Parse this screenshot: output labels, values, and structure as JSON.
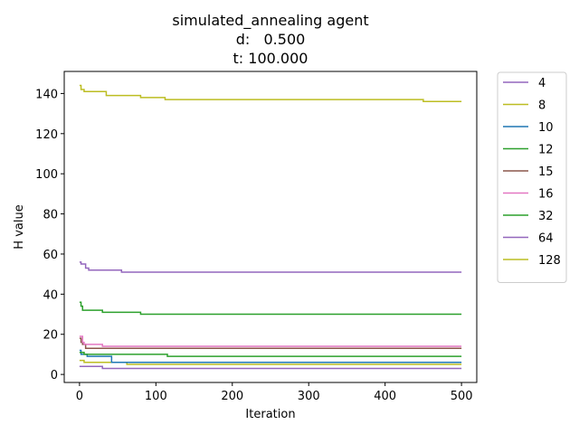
{
  "chart_data": {
    "type": "line",
    "title_lines": [
      "simulated_annealing agent",
      "d:   0.500",
      "t: 100.000"
    ],
    "xlabel": "Iteration",
    "ylabel": "H value",
    "xlim": [
      -20,
      520
    ],
    "ylim": [
      -4,
      151
    ],
    "xticks": [
      0,
      100,
      200,
      300,
      400,
      500
    ],
    "yticks": [
      0,
      20,
      40,
      60,
      80,
      100,
      120,
      140
    ],
    "grid": false,
    "legend_position": "outside-right",
    "series": [
      {
        "name": "4",
        "color": "#9467bd",
        "steps": [
          [
            0,
            4
          ],
          [
            30,
            3
          ],
          [
            500,
            3
          ]
        ]
      },
      {
        "name": "8",
        "color": "#bcbd22",
        "steps": [
          [
            0,
            7
          ],
          [
            6,
            6
          ],
          [
            62,
            5
          ],
          [
            500,
            5
          ]
        ]
      },
      {
        "name": "10",
        "color": "#1f77b4",
        "steps": [
          [
            0,
            12
          ],
          [
            2,
            10
          ],
          [
            10,
            9
          ],
          [
            42,
            6
          ],
          [
            500,
            6
          ]
        ]
      },
      {
        "name": "12",
        "color": "#2ca02c",
        "steps": [
          [
            0,
            11
          ],
          [
            6,
            10
          ],
          [
            115,
            9
          ],
          [
            500,
            9
          ]
        ]
      },
      {
        "name": "15",
        "color": "#8c564b",
        "steps": [
          [
            0,
            18
          ],
          [
            2,
            16
          ],
          [
            4,
            15
          ],
          [
            8,
            13
          ],
          [
            500,
            13
          ]
        ]
      },
      {
        "name": "16",
        "color": "#e377c2",
        "steps": [
          [
            0,
            19
          ],
          [
            4,
            16
          ],
          [
            6,
            15
          ],
          [
            30,
            14
          ],
          [
            500,
            14
          ]
        ]
      },
      {
        "name": "32",
        "color": "#2ca02c",
        "steps": [
          [
            0,
            36
          ],
          [
            2,
            34
          ],
          [
            4,
            32
          ],
          [
            30,
            31
          ],
          [
            80,
            30
          ],
          [
            500,
            30
          ]
        ]
      },
      {
        "name": "64",
        "color": "#9467bd",
        "steps": [
          [
            0,
            56
          ],
          [
            2,
            55
          ],
          [
            8,
            53
          ],
          [
            12,
            52
          ],
          [
            55,
            51
          ],
          [
            500,
            51
          ]
        ]
      },
      {
        "name": "128",
        "color": "#bcbd22",
        "steps": [
          [
            0,
            144
          ],
          [
            2,
            142
          ],
          [
            6,
            141
          ],
          [
            35,
            139
          ],
          [
            80,
            138
          ],
          [
            112,
            137
          ],
          [
            450,
            136
          ],
          [
            500,
            136
          ]
        ]
      }
    ]
  }
}
